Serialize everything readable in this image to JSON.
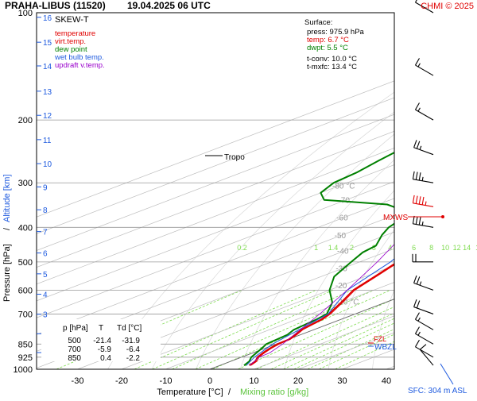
{
  "header": {
    "station": "PRAHA-LIBUS (11520)",
    "datetime": "19.04.2025 06 UTC",
    "credit": "CHMI © 2025"
  },
  "footer": {
    "sfc_note": "SFC: 304 m ASL"
  },
  "colors": {
    "temperature": "#e00000",
    "virtual_temperature": "#e00000",
    "dew_point": "#008000",
    "wet_bulb": "#1e5adf",
    "updraft": "#9900cc",
    "grid": "#999999",
    "isotherm": "#bdbdbd",
    "mixing_ratio": "#7fdc50",
    "label_gray": "#999999"
  },
  "legend": {
    "title": "SKEW-T",
    "items": [
      {
        "label": "temperature",
        "color": "#e00000"
      },
      {
        "label": "virt.temp.",
        "color": "#e00000"
      },
      {
        "label": "dew point",
        "color": "#008000"
      },
      {
        "label": "wet bulb temp.",
        "color": "#1e5adf"
      },
      {
        "label": "updraft v.temp.",
        "color": "#9900cc"
      }
    ]
  },
  "surface": {
    "heading": "Surface:",
    "lines": [
      {
        "text": "press: 975.9 hPa",
        "color": "#000000"
      },
      {
        "text": "temp: 6.7 °C",
        "color": "#e00000"
      },
      {
        "text": "dwpt: 5.5 °C",
        "color": "#008000"
      },
      {
        "text": "t-conv: 10.0 °C",
        "color": "#000000"
      },
      {
        "text": "t-mxfc: 13.4 °C",
        "color": "#000000"
      }
    ]
  },
  "levels_table": {
    "headers": [
      "p [hPa]",
      "T",
      "Td [°C]"
    ],
    "rows": [
      [
        "500",
        "-21.4",
        "-31.9"
      ],
      [
        "700",
        "-5.9",
        "-6.4"
      ],
      [
        "850",
        "0.4",
        "-2.2"
      ]
    ]
  },
  "annotations": {
    "tropo": "Tropo",
    "mxws": "MXWS",
    "wbzl": "WBZL",
    "fzl": "FZL"
  },
  "chart_data": {
    "type": "line",
    "title": "SKEW-T",
    "xlabel": "Temperature [°C]",
    "xlabel_extra": "Mixing ratio [g/kg]",
    "ylabel": "Pressure [hPa]",
    "ylabel_extra": "Altitude [km]",
    "log_pressure_axis": true,
    "xlim": [
      -35,
      45
    ],
    "ylim": [
      1000,
      100
    ],
    "x_ticks": [
      -30,
      -20,
      -10,
      0,
      10,
      20,
      30,
      40
    ],
    "pressure_ticks": [
      100,
      200,
      300,
      400,
      500,
      600,
      700,
      850,
      925,
      1000
    ],
    "altitude_ticks": [
      {
        "km": 1,
        "p": 898
      },
      {
        "km": 2,
        "p": 795
      },
      {
        "km": 3,
        "p": 701
      },
      {
        "km": 4,
        "p": 616
      },
      {
        "km": 5,
        "p": 540
      },
      {
        "km": 6,
        "p": 472
      },
      {
        "km": 7,
        "p": 411
      },
      {
        "km": 8,
        "p": 357
      },
      {
        "km": 9,
        "p": 308
      },
      {
        "km": 10,
        "p": 265
      },
      {
        "km": 11,
        "p": 227
      },
      {
        "km": 12,
        "p": 194
      },
      {
        "km": 13,
        "p": 166
      },
      {
        "km": 14,
        "p": 141
      },
      {
        "km": 15,
        "p": 121
      },
      {
        "km": 16,
        "p": 103
      }
    ],
    "isotherm_labels": [
      {
        "t": -80,
        "label": "-80 °C"
      },
      {
        "t": -70,
        "label": "-70"
      },
      {
        "t": -60,
        "label": "-60"
      },
      {
        "t": -50,
        "label": "-50"
      },
      {
        "t": -40,
        "label": "-40"
      },
      {
        "t": -30,
        "label": "-30"
      },
      {
        "t": -20,
        "label": "-20"
      },
      {
        "t": -10,
        "label": "-10 °C"
      }
    ],
    "mixing_ratio_labels": [
      "0.2",
      "1",
      "1.4",
      "2",
      "3",
      "4",
      "6",
      "8",
      "10",
      "12",
      "14",
      "17",
      "20",
      "25"
    ],
    "series": [
      {
        "name": "temperature",
        "color": "#e00000",
        "points": [
          {
            "p": 975.9,
            "t": 6.7
          },
          {
            "p": 950,
            "t": 5.6
          },
          {
            "p": 925,
            "t": 3.6
          },
          {
            "p": 900,
            "t": 2.3
          },
          {
            "p": 875,
            "t": 1.2
          },
          {
            "p": 850,
            "t": 0.4
          },
          {
            "p": 825,
            "t": 0.1
          },
          {
            "p": 800,
            "t": -1.2
          },
          {
            "p": 775,
            "t": -2.8
          },
          {
            "p": 750,
            "t": -3.6
          },
          {
            "p": 725,
            "t": -4.4
          },
          {
            "p": 700,
            "t": -5.9
          },
          {
            "p": 650,
            "t": -10.0
          },
          {
            "p": 600,
            "t": -14.6
          },
          {
            "p": 550,
            "t": -17.8
          },
          {
            "p": 500,
            "t": -21.4
          },
          {
            "p": 450,
            "t": -26.8
          },
          {
            "p": 400,
            "t": -32.6
          },
          {
            "p": 350,
            "t": -39.6
          },
          {
            "p": 330,
            "t": -44.0
          },
          {
            "p": 300,
            "t": -49.0
          },
          {
            "p": 275,
            "t": -53.0
          },
          {
            "p": 255,
            "t": -56.8
          },
          {
            "p": 240,
            "t": -57.6
          },
          {
            "p": 220,
            "t": -57.8
          },
          {
            "p": 200,
            "t": -58.0
          },
          {
            "p": 180,
            "t": -59.0
          },
          {
            "p": 160,
            "t": -60.5
          },
          {
            "p": 140,
            "t": -63.0
          },
          {
            "p": 120,
            "t": -64.0
          },
          {
            "p": 100,
            "t": -64.0
          }
        ]
      },
      {
        "name": "dew point",
        "color": "#008000",
        "points": [
          {
            "p": 975.9,
            "t": 5.5
          },
          {
            "p": 950,
            "t": 4.2
          },
          {
            "p": 925,
            "t": 2.2
          },
          {
            "p": 900,
            "t": 0.8
          },
          {
            "p": 875,
            "t": -0.6
          },
          {
            "p": 850,
            "t": -2.2
          },
          {
            "p": 825,
            "t": -2.6
          },
          {
            "p": 800,
            "t": -3.0
          },
          {
            "p": 775,
            "t": -4.5
          },
          {
            "p": 750,
            "t": -5.0
          },
          {
            "p": 725,
            "t": -5.5
          },
          {
            "p": 700,
            "t": -6.4
          },
          {
            "p": 650,
            "t": -12.0
          },
          {
            "p": 600,
            "t": -20.0
          },
          {
            "p": 550,
            "t": -27.0
          },
          {
            "p": 500,
            "t": -31.9
          },
          {
            "p": 470,
            "t": -35.0
          },
          {
            "p": 450,
            "t": -36.0
          },
          {
            "p": 420,
            "t": -41.0
          },
          {
            "p": 400,
            "t": -44.0
          },
          {
            "p": 380,
            "t": -46.0
          },
          {
            "p": 360,
            "t": -50.0
          },
          {
            "p": 345,
            "t": -58.0
          },
          {
            "p": 335,
            "t": -75.0
          },
          {
            "p": 320,
            "t": -80.0
          },
          {
            "p": 300,
            "t": -83.0
          },
          {
            "p": 280,
            "t": -84.0
          },
          {
            "p": 260,
            "t": -86.0
          },
          {
            "p": 240,
            "t": -88.0
          },
          {
            "p": 220,
            "t": -90.0
          },
          {
            "p": 200,
            "t": -91.0
          },
          {
            "p": 180,
            "t": -91.0
          },
          {
            "p": 160,
            "t": -89.0
          },
          {
            "p": 140,
            "t": -87.0
          },
          {
            "p": 120,
            "t": -85.0
          },
          {
            "p": 100,
            "t": -84.0
          }
        ]
      },
      {
        "name": "wet bulb temp.",
        "color": "#1e5adf",
        "points": [
          {
            "p": 975.9,
            "t": 6.0
          },
          {
            "p": 925,
            "t": 2.9
          },
          {
            "p": 850,
            "t": -0.8
          },
          {
            "p": 700,
            "t": -6.1
          },
          {
            "p": 600,
            "t": -16.0
          },
          {
            "p": 500,
            "t": -23.0
          },
          {
            "p": 400,
            "t": -34.0
          },
          {
            "p": 300,
            "t": -50.0
          }
        ]
      },
      {
        "name": "updraft v.temp.",
        "color": "#9900cc",
        "points": [
          {
            "p": 975.9,
            "t": 6.7
          },
          {
            "p": 925,
            "t": 4.0
          },
          {
            "p": 900,
            "t": 3.8
          },
          {
            "p": 850,
            "t": 1.5
          },
          {
            "p": 800,
            "t": -1.5
          },
          {
            "p": 700,
            "t": -8.0
          },
          {
            "p": 600,
            "t": -16.0
          },
          {
            "p": 500,
            "t": -26.0
          },
          {
            "p": 400,
            "t": -39.0
          },
          {
            "p": 300,
            "t": -56.0
          },
          {
            "p": 200,
            "t": -79.0
          },
          {
            "p": 160,
            "t": -90.0
          }
        ]
      }
    ],
    "wind_barbs": [
      {
        "p": 975,
        "dir": 320,
        "speed_kt": 10
      },
      {
        "p": 925,
        "dir": 300,
        "speed_kt": 10
      },
      {
        "p": 850,
        "dir": 300,
        "speed_kt": 15
      },
      {
        "p": 775,
        "dir": 300,
        "speed_kt": 15
      },
      {
        "p": 700,
        "dir": 290,
        "speed_kt": 20
      },
      {
        "p": 600,
        "dir": 290,
        "speed_kt": 25
      },
      {
        "p": 500,
        "dir": 270,
        "speed_kt": 20
      },
      {
        "p": 400,
        "dir": 280,
        "speed_kt": 35
      },
      {
        "p": 350,
        "dir": 280,
        "speed_kt": 45
      },
      {
        "p": 300,
        "dir": 280,
        "speed_kt": 35
      },
      {
        "p": 250,
        "dir": 290,
        "speed_kt": 25
      },
      {
        "p": 200,
        "dir": 300,
        "speed_kt": 15
      },
      {
        "p": 150,
        "dir": 300,
        "speed_kt": 15
      },
      {
        "p": 100,
        "dir": 300,
        "speed_kt": 10
      }
    ]
  }
}
